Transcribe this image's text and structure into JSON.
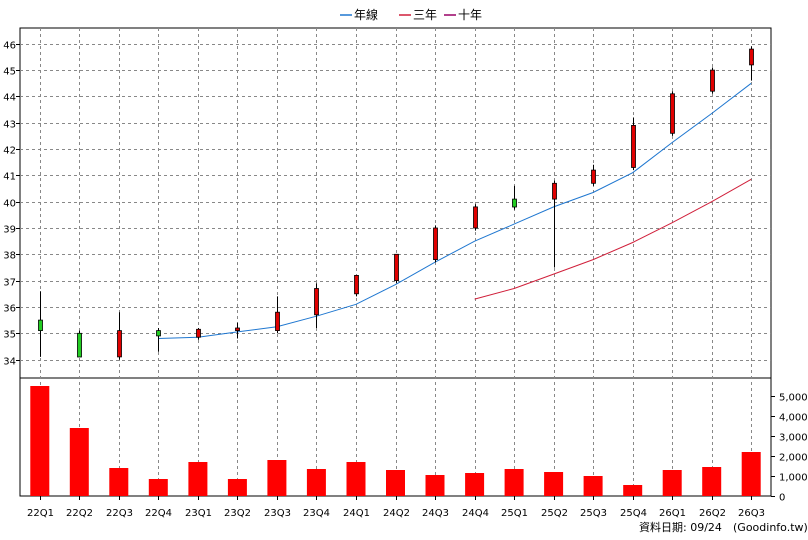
{
  "chart_data": {
    "type": "candlestick",
    "legend": {
      "placement": "top-center",
      "items": [
        {
          "name": "年線",
          "color": "#1f77d0"
        },
        {
          "name": "三年",
          "color": "#d01f3a"
        },
        {
          "name": "十年",
          "color": "#990066"
        }
      ]
    },
    "categories": [
      "22Q1",
      "22Q2",
      "22Q3",
      "22Q4",
      "23Q1",
      "23Q2",
      "23Q3",
      "23Q4",
      "24Q1",
      "24Q2",
      "24Q3",
      "24Q4",
      "25Q1",
      "25Q2",
      "25Q3",
      "25Q4",
      "26Q1",
      "26Q2",
      "26Q3"
    ],
    "price": {
      "ylim": [
        33.3,
        46.6
      ],
      "ticks": [
        "34",
        "35",
        "36",
        "37",
        "38",
        "39",
        "40",
        "41",
        "42",
        "43",
        "44",
        "45",
        "46"
      ],
      "ohlc": [
        {
          "o": 35.5,
          "h": 36.6,
          "l": 34.1,
          "c": 35.1,
          "up": false
        },
        {
          "o": 35.0,
          "h": 35.1,
          "l": 34.1,
          "c": 34.1,
          "up": false
        },
        {
          "o": 34.1,
          "h": 35.8,
          "l": 34.0,
          "c": 35.1,
          "up": true
        },
        {
          "o": 35.1,
          "h": 35.2,
          "l": 34.3,
          "c": 34.9,
          "up": false
        },
        {
          "o": 34.85,
          "h": 35.2,
          "l": 34.75,
          "c": 35.15,
          "up": true
        },
        {
          "o": 35.1,
          "h": 35.4,
          "l": 34.8,
          "c": 35.2,
          "up": true
        },
        {
          "o": 35.1,
          "h": 36.4,
          "l": 35.0,
          "c": 35.8,
          "up": true
        },
        {
          "o": 35.7,
          "h": 36.9,
          "l": 35.2,
          "c": 36.7,
          "up": true
        },
        {
          "o": 36.5,
          "h": 37.2,
          "l": 36.4,
          "c": 37.2,
          "up": true
        },
        {
          "o": 37.0,
          "h": 38.0,
          "l": 36.9,
          "c": 38.0,
          "up": true
        },
        {
          "o": 37.8,
          "h": 39.1,
          "l": 37.7,
          "c": 39.0,
          "up": true
        },
        {
          "o": 39.0,
          "h": 39.9,
          "l": 38.9,
          "c": 39.8,
          "up": true
        },
        {
          "o": 40.1,
          "h": 40.6,
          "l": 39.7,
          "c": 39.8,
          "up": false
        },
        {
          "o": 40.1,
          "h": 40.8,
          "l": 37.5,
          "c": 40.7,
          "up": true
        },
        {
          "o": 40.7,
          "h": 41.4,
          "l": 40.6,
          "c": 41.2,
          "up": true
        },
        {
          "o": 41.3,
          "h": 43.2,
          "l": 41.2,
          "c": 42.9,
          "up": true
        },
        {
          "o": 42.6,
          "h": 44.2,
          "l": 42.5,
          "c": 44.1,
          "up": true
        },
        {
          "o": 44.2,
          "h": 45.1,
          "l": 44.1,
          "c": 45.0,
          "up": true
        },
        {
          "o": 45.2,
          "h": 45.9,
          "l": 44.6,
          "c": 45.8,
          "up": true
        }
      ],
      "line_year": [
        null,
        null,
        null,
        34.8,
        34.85,
        35.05,
        35.25,
        35.65,
        36.1,
        36.85,
        37.7,
        38.5,
        39.15,
        39.8,
        40.35,
        41.1,
        42.25,
        43.35,
        44.5
      ],
      "line_three": [
        null,
        null,
        null,
        null,
        null,
        null,
        null,
        null,
        null,
        null,
        null,
        36.3,
        36.7,
        37.25,
        37.8,
        38.45,
        39.2,
        40.0,
        40.85
      ]
    },
    "volume": {
      "ylim": [
        0,
        5900
      ],
      "ticks": [
        "0",
        "1,000",
        "2,000",
        "3,000",
        "4,000",
        "5,000"
      ],
      "values": [
        5500,
        3400,
        1400,
        850,
        1700,
        850,
        1800,
        1350,
        1700,
        1300,
        1050,
        1150,
        1350,
        1200,
        1000,
        550,
        1300,
        1450,
        2200
      ],
      "color": "#ff0000"
    },
    "grid": true
  },
  "source": {
    "label": "資料日期: 09/24",
    "site": "(Goodinfo.tw)"
  }
}
